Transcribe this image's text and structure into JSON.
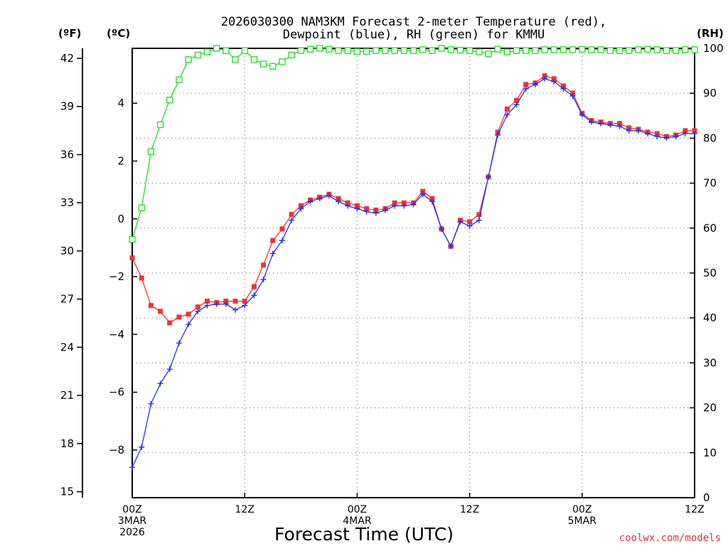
{
  "chart_data": {
    "type": "line",
    "title_line1": "2026030300 NAM3KM Forecast 2-meter Temperature (red),",
    "title_line2": "Dewpoint (blue), RH (green) for KMMU",
    "xlabel": "Forecast Time (UTC)",
    "credit": "coolwx.com/models",
    "unit_f": "(ºF)",
    "unit_c": "(ºC)",
    "unit_rh": "(RH)",
    "x_ticks": [
      {
        "hour": 0,
        "lines": [
          "00Z",
          "3MAR",
          "2026"
        ]
      },
      {
        "hour": 12,
        "lines": [
          "12Z"
        ]
      },
      {
        "hour": 24,
        "lines": [
          "00Z",
          "4MAR"
        ]
      },
      {
        "hour": 36,
        "lines": [
          "12Z"
        ]
      },
      {
        "hour": 48,
        "lines": [
          "00Z",
          "5MAR"
        ]
      },
      {
        "hour": 60,
        "lines": [
          "12Z"
        ]
      }
    ],
    "xlim": [
      0,
      60
    ],
    "ylim_c": [
      -9.65,
      5.9
    ],
    "ylim_rh": [
      0,
      100
    ],
    "f_ticks": [
      "15",
      "18",
      "21",
      "24",
      "27",
      "30",
      "33",
      "36",
      "39",
      "42"
    ],
    "c_ticks": [
      "-8",
      "-6",
      "-4",
      "-2",
      "0",
      "2",
      "4"
    ],
    "rh_ticks": [
      "0",
      "10",
      "20",
      "30",
      "40",
      "50",
      "60",
      "70",
      "80",
      "90",
      "100"
    ],
    "series": [
      {
        "name": "Temperature",
        "color": "#ee3333",
        "marker": "square",
        "values": [
          -1.35,
          -2.05,
          -3.0,
          -3.2,
          -3.6,
          -3.4,
          -3.3,
          -3.05,
          -2.85,
          -2.9,
          -2.85,
          -2.85,
          -2.85,
          -2.35,
          -1.6,
          -0.75,
          -0.35,
          0.15,
          0.45,
          0.65,
          0.75,
          0.85,
          0.7,
          0.55,
          0.45,
          0.35,
          0.3,
          0.35,
          0.55,
          0.55,
          0.55,
          0.95,
          0.7,
          -0.35,
          -0.95,
          -0.05,
          -0.1,
          0.15,
          1.45,
          3.0,
          3.8,
          4.1,
          4.65,
          4.7,
          4.95,
          4.85,
          4.6,
          4.35,
          3.65,
          3.4,
          3.35,
          3.3,
          3.3,
          3.15,
          3.1,
          3.0,
          2.95,
          2.85,
          2.9,
          3.05,
          3.05
        ]
      },
      {
        "name": "Dewpoint",
        "color": "#2233ee",
        "marker": "plus",
        "values": [
          -8.6,
          -7.9,
          -6.4,
          -5.7,
          -5.2,
          -4.3,
          -3.65,
          -3.2,
          -3.0,
          -2.95,
          -2.95,
          -3.15,
          -3.0,
          -2.65,
          -2.1,
          -1.2,
          -0.75,
          -0.05,
          0.35,
          0.6,
          0.7,
          0.8,
          0.6,
          0.45,
          0.35,
          0.25,
          0.2,
          0.3,
          0.45,
          0.45,
          0.5,
          0.85,
          0.6,
          -0.35,
          -0.95,
          -0.1,
          -0.25,
          -0.05,
          1.45,
          2.9,
          3.6,
          3.95,
          4.5,
          4.65,
          4.85,
          4.75,
          4.5,
          4.25,
          3.6,
          3.35,
          3.3,
          3.25,
          3.2,
          3.05,
          3.05,
          2.95,
          2.85,
          2.8,
          2.85,
          2.95,
          2.95
        ]
      },
      {
        "name": "RH",
        "color": "#22dd22",
        "marker": "open-square",
        "axis": "rh",
        "values": [
          57.5,
          64.5,
          77,
          83,
          88.5,
          93,
          97.5,
          98.5,
          99.2,
          100,
          99.5,
          97.5,
          99.5,
          97.5,
          96.5,
          96,
          97,
          98.5,
          99.5,
          99.8,
          100,
          99.8,
          99.5,
          99.5,
          99.3,
          99.3,
          99.5,
          99.5,
          99.5,
          99.5,
          99.5,
          99.7,
          99.5,
          100,
          99.7,
          99.6,
          99.5,
          99.2,
          98.8,
          99.8,
          99.2,
          99.5,
          99.5,
          99.5,
          99.7,
          99.7,
          99.7,
          99.7,
          99.8,
          99.7,
          99.7,
          99.5,
          99.5,
          99.5,
          99.7,
          99.8,
          99.7,
          99.5,
          99.5,
          99.7,
          99.7
        ]
      }
    ]
  }
}
